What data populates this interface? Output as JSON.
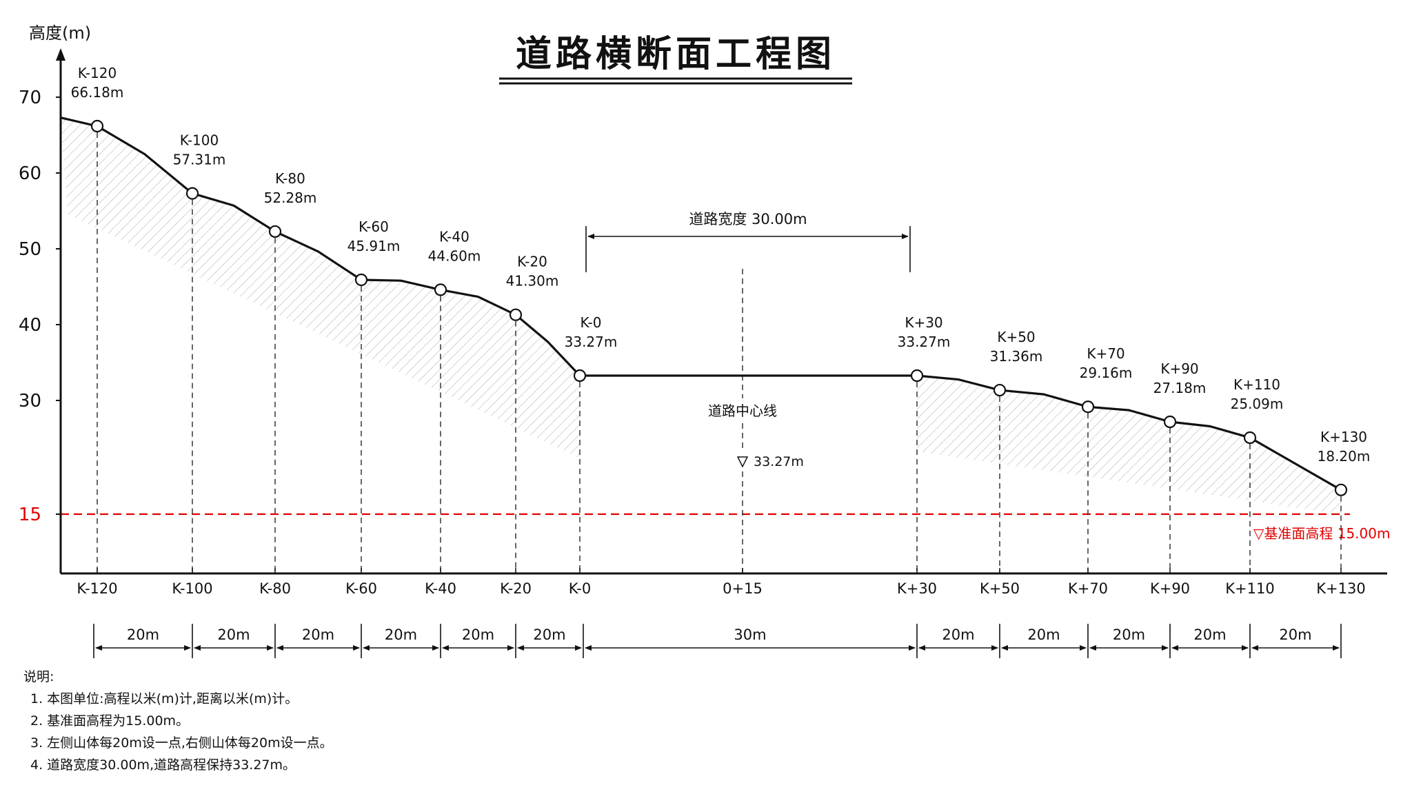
{
  "title": "道路横断面工程图",
  "y_axis_label": "高度(m)",
  "y_ticks": [
    {
      "v": 70,
      "label": "70"
    },
    {
      "v": 60,
      "label": "60"
    },
    {
      "v": 50,
      "label": "50"
    },
    {
      "v": 40,
      "label": "40"
    },
    {
      "v": 30,
      "label": "30"
    },
    {
      "v": 15,
      "label": "15"
    }
  ],
  "datum": {
    "elevation": 15,
    "label": "▽基准面高程 15.00m",
    "color": "#e00000"
  },
  "ground_start_elevation": 67.3,
  "points": [
    {
      "station": "K-120",
      "elevation": 66.18,
      "elev_label": "66.18m"
    },
    {
      "station": "K-100",
      "elevation": 57.31,
      "elev_label": "57.31m"
    },
    {
      "station": "K-80",
      "elevation": 52.28,
      "elev_label": "52.28m"
    },
    {
      "station": "K-60",
      "elevation": 45.91,
      "elev_label": "45.91m"
    },
    {
      "station": "K-40",
      "elevation": 44.6,
      "elev_label": "44.60m"
    },
    {
      "station": "K-20",
      "elevation": 41.3,
      "elev_label": "41.30m"
    },
    {
      "station": "K-0",
      "elevation": 33.27,
      "elev_label": "33.27m"
    },
    {
      "station": "K+30",
      "elevation": 33.27,
      "elev_label": "33.27m"
    },
    {
      "station": "K+50",
      "elevation": 31.36,
      "elev_label": "31.36m"
    },
    {
      "station": "K+70",
      "elevation": 29.16,
      "elev_label": "29.16m"
    },
    {
      "station": "K+90",
      "elevation": 27.18,
      "elev_label": "27.18m"
    },
    {
      "station": "K+110",
      "elevation": 25.09,
      "elev_label": "25.09m"
    },
    {
      "station": "K+130",
      "elevation": 18.2,
      "elev_label": "18.20m"
    }
  ],
  "x_stations": [
    "K-120",
    "K-100",
    "K-80",
    "K-60",
    "K-40",
    "K-20",
    "K-0",
    "0+15",
    "K+30",
    "K+50",
    "K+70",
    "K+90",
    "K+110",
    "K+130"
  ],
  "centerline": {
    "station": "0+15",
    "label": "道路中心线",
    "elev_label": "33.27m"
  },
  "road_width_label": "道路宽度 30.00m",
  "spacings": [
    "20m",
    "20m",
    "20m",
    "20m",
    "20m",
    "20m",
    "30m",
    "20m",
    "20m",
    "20m",
    "20m",
    "20m"
  ],
  "notes": {
    "heading": "说明:",
    "items": [
      "1. 本图单位:高程以米(m)计,距离以米(m)计。",
      "2. 基准面高程为15.00m。",
      "3. 左侧山体每20m设一点,右侧山体每20m设一点。",
      "4. 道路宽度30.00m,道路高程保持33.27m。"
    ]
  }
}
